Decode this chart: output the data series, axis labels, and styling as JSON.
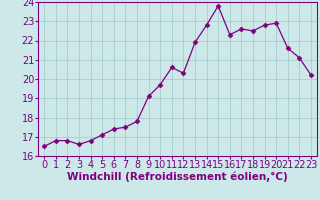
{
  "x": [
    0,
    1,
    2,
    3,
    4,
    5,
    6,
    7,
    8,
    9,
    10,
    11,
    12,
    13,
    14,
    15,
    16,
    17,
    18,
    19,
    20,
    21,
    22,
    23
  ],
  "y": [
    16.5,
    16.8,
    16.8,
    16.6,
    16.8,
    17.1,
    17.4,
    17.5,
    17.8,
    19.1,
    19.7,
    20.6,
    20.3,
    21.9,
    22.8,
    23.8,
    22.3,
    22.6,
    22.5,
    22.8,
    22.9,
    21.6,
    21.1,
    20.2
  ],
  "xlabel": "Windchill (Refroidissement éolien,°C)",
  "xlim": [
    -0.5,
    23.5
  ],
  "ylim": [
    16,
    24
  ],
  "yticks": [
    16,
    17,
    18,
    19,
    20,
    21,
    22,
    23,
    24
  ],
  "xticks": [
    0,
    1,
    2,
    3,
    4,
    5,
    6,
    7,
    8,
    9,
    10,
    11,
    12,
    13,
    14,
    15,
    16,
    17,
    18,
    19,
    20,
    21,
    22,
    23
  ],
  "line_color": "#800080",
  "marker": "D",
  "marker_size": 2.5,
  "line_width": 0.9,
  "bg_color": "#cce8e8",
  "grid_color": "#aacccc",
  "xlabel_fontsize": 7.5,
  "tick_fontsize": 7
}
